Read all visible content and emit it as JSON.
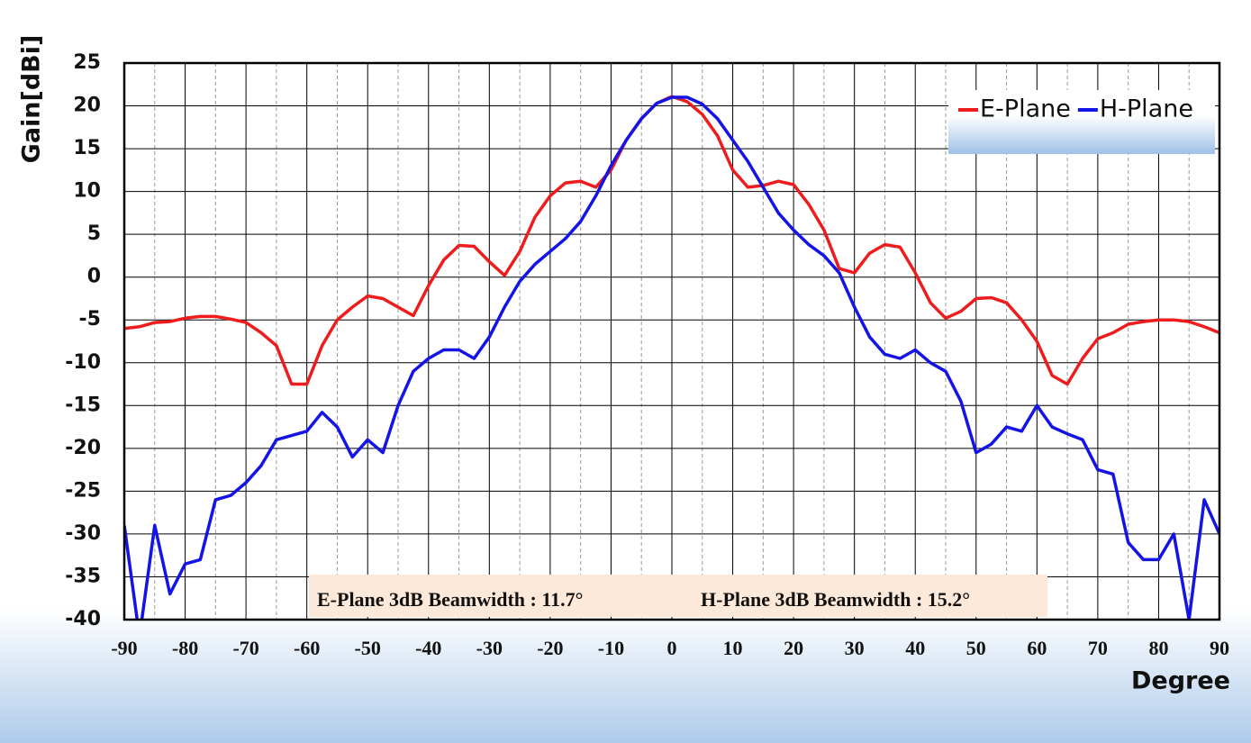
{
  "chart_data": {
    "type": "line",
    "ylabel": "Gain[dBi]",
    "xlabel": "Degree",
    "annotations": [
      "E-Plane 3dB Beamwidth : 11.7°",
      "H-Plane 3dB Beamwidth : 15.2°"
    ],
    "x": [
      -90,
      -87.5,
      -85,
      -82.5,
      -80,
      -77.5,
      -75,
      -72.5,
      -70,
      -67.5,
      -65,
      -62.5,
      -60,
      -57.5,
      -55,
      -52.5,
      -50,
      -47.5,
      -45,
      -42.5,
      -40,
      -37.5,
      -35,
      -32.5,
      -30,
      -27.5,
      -25,
      -22.5,
      -20,
      -17.5,
      -15,
      -12.5,
      -10,
      -7.5,
      -5,
      -2.5,
      0,
      2.5,
      5,
      7.5,
      10,
      12.5,
      15,
      17.5,
      20,
      22.5,
      25,
      27.5,
      30,
      32.5,
      35,
      37.5,
      40,
      42.5,
      45,
      47.5,
      50,
      52.5,
      55,
      57.5,
      60,
      62.5,
      65,
      67.5,
      70,
      72.5,
      75,
      77.5,
      80,
      82.5,
      85,
      87.5,
      90
    ],
    "series": [
      {
        "name": "E-Plane",
        "color": "#ee1c1c",
        "values": [
          -6,
          -5.8,
          -5.3,
          -5.2,
          -4.8,
          -4.6,
          -4.6,
          -4.9,
          -5.3,
          -6.5,
          -8,
          -12.5,
          -12.5,
          -8,
          -5,
          -3.5,
          -2.2,
          -2.5,
          -3.5,
          -4.5,
          -1,
          2,
          3.7,
          3.6,
          1.8,
          0.2,
          3,
          7,
          9.5,
          11,
          11.2,
          10.5,
          12.5,
          16,
          18.5,
          20.3,
          21.1,
          20.5,
          19,
          16.5,
          12.5,
          10.5,
          10.7,
          11.2,
          10.8,
          8.5,
          5.5,
          1,
          0.5,
          2.8,
          3.8,
          3.5,
          0.5,
          -3,
          -4.8,
          -4,
          -2.5,
          -2.4,
          -3,
          -5,
          -7.5,
          -11.5,
          -12.5,
          -9.5,
          -7.2,
          -6.5,
          -5.5,
          -5.2,
          -5,
          -5,
          -5.2,
          -5.8,
          -6.5
        ]
      },
      {
        "name": "H-Plane",
        "color": "#1414e6",
        "values": [
          -29,
          -42,
          -29,
          -37,
          -33.5,
          -33,
          -26,
          -25.5,
          -24,
          -22,
          -19,
          -18.5,
          -18,
          -15.8,
          -17.5,
          -21,
          -19,
          -20.5,
          -15,
          -11,
          -9.5,
          -8.5,
          -8.5,
          -9.5,
          -7,
          -3.5,
          -0.5,
          1.5,
          3,
          4.5,
          6.5,
          9.5,
          13,
          16,
          18.5,
          20.3,
          21,
          21,
          20.2,
          18.5,
          16,
          13.5,
          10.5,
          7.5,
          5.5,
          3.8,
          2.5,
          0.5,
          -3.5,
          -7,
          -9,
          -9.5,
          -8.5,
          -10,
          -11,
          -14.5,
          -20.5,
          -19.5,
          -17.5,
          -18,
          -15,
          -17.5,
          -18.3,
          -19,
          -22.5,
          -23,
          -31,
          -33,
          -33,
          -30,
          -40,
          -26,
          -30
        ]
      }
    ],
    "xlim": [
      -90,
      90
    ],
    "xticks": [
      -90,
      -80,
      -70,
      -60,
      -50,
      -40,
      -30,
      -20,
      -10,
      0,
      10,
      20,
      30,
      40,
      50,
      60,
      70,
      80,
      90
    ],
    "ylim": [
      -40,
      25
    ],
    "yticks": [
      -40,
      -35,
      -30,
      -25,
      -20,
      -15,
      -10,
      -5,
      0,
      5,
      10,
      15,
      20,
      25
    ],
    "grid": true,
    "minor_grid": true,
    "legend": "upper right"
  }
}
